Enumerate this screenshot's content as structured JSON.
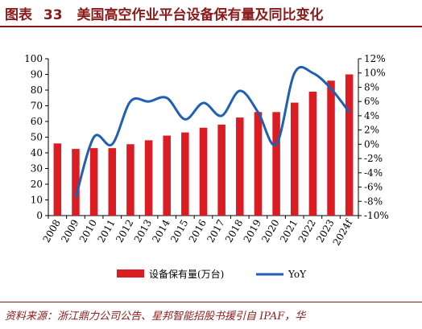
{
  "figure": {
    "label": "图表",
    "number": "33",
    "title": "美国高空作业平台设备保有量及同比变化"
  },
  "source_text": "资料来源：浙江鼎力公司公告、星邦智能招股书援引自 IPAF，华",
  "colors": {
    "bar": "#dc1c23",
    "line": "#1f5fb4",
    "title": "#8b1a1a",
    "axis": "#000000"
  },
  "chart_data": {
    "type": "bar",
    "categories": [
      "2008",
      "2009",
      "2010",
      "2011",
      "2012",
      "2013",
      "2014",
      "2015",
      "2016",
      "2017",
      "2018",
      "2019",
      "2020",
      "2021",
      "2022",
      "2023",
      "2024f"
    ],
    "series": [
      {
        "name": "设备保有量(万台)",
        "type": "bar",
        "axis": "left",
        "values": [
          46,
          42.5,
          43,
          43,
          45.5,
          48,
          51,
          53,
          56,
          58,
          62.5,
          66,
          66,
          72,
          79,
          86,
          90
        ]
      },
      {
        "name": "YoY",
        "type": "line",
        "axis": "right",
        "values": [
          null,
          -7.5,
          1,
          0,
          6,
          6,
          6.5,
          3.5,
          5.8,
          4,
          7.5,
          4.5,
          0,
          10,
          10,
          7.8,
          4.5
        ]
      }
    ],
    "y_left": {
      "min": 0,
      "max": 100,
      "step": 10,
      "ticks": [
        "0",
        "10",
        "20",
        "30",
        "40",
        "50",
        "60",
        "70",
        "80",
        "90",
        "100"
      ]
    },
    "y_right": {
      "min": -10,
      "max": 12,
      "step": 2,
      "ticks": [
        "-10%",
        "-8%",
        "-6%",
        "-4%",
        "-2%",
        "0%",
        "2%",
        "4%",
        "6%",
        "8%",
        "10%",
        "12%"
      ]
    },
    "grid": false,
    "legend_position": "bottom"
  }
}
